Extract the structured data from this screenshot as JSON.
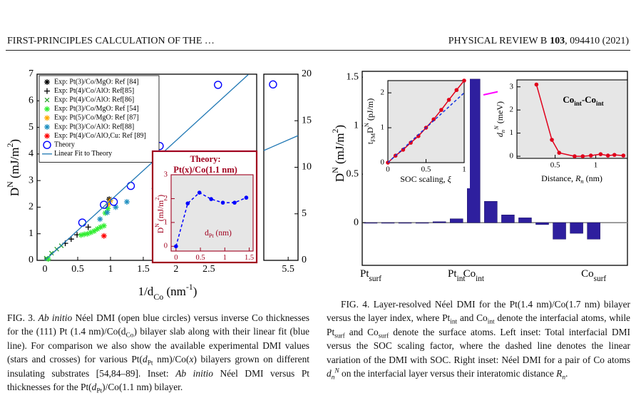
{
  "header": {
    "left": "FIRST-PRINCIPLES CALCULATION OF THE …",
    "journal": "PHYSICAL REVIEW B",
    "volume": "103",
    "citation": ", 094410 (2021)"
  },
  "chart_data": [
    {
      "type": "scatter",
      "ylabel": [
        {
          "t": "D"
        },
        {
          "t": "N",
          "s": "sup"
        },
        {
          "t": " (mJ/m"
        },
        {
          "t": "2",
          "s": "sup"
        },
        {
          "t": ")"
        }
      ],
      "xlabel": [
        {
          "t": "1/d"
        },
        {
          "t": "Co",
          "s": "sub"
        },
        {
          "t": " (nm"
        },
        {
          "t": "-1",
          "s": "sup"
        },
        {
          "t": ")"
        }
      ],
      "xlim": [
        -0.12,
        3.23
      ],
      "xticks": [
        0,
        0.5,
        1,
        1.5,
        2,
        2.5
      ],
      "x2lim": [
        5.13,
        5.65
      ],
      "x2ticks": [
        5.5
      ],
      "ylim": [
        0,
        7
      ],
      "yticks": [
        0,
        1,
        2,
        3,
        4,
        5,
        6,
        7
      ],
      "y2lim": [
        0,
        20
      ],
      "y2ticks": [
        0,
        5,
        10,
        15,
        20
      ],
      "legend": "upper left",
      "series": [
        {
          "name": "Exp: Pt(3)/Co/MgO: Ref [84]",
          "color": "#000000",
          "marker": "star",
          "x": [
            0.98
          ],
          "values": [
            2.3
          ]
        },
        {
          "name": "Exp: Pt(4)/Co/AlO: Ref[85]",
          "color": "#000000",
          "marker": "plus",
          "x": [
            0.31,
            0.4,
            0.49,
            0.66
          ],
          "values": [
            0.64,
            0.8,
            0.96,
            1.25
          ]
        },
        {
          "name": "Exp: Pt(4)/Co/AlO: Ref[86]",
          "color": "#2ca02c",
          "marker": "x",
          "x": [
            0.02,
            0.1,
            0.18,
            0.25
          ],
          "values": [
            0.08,
            0.27,
            0.42,
            0.55
          ]
        },
        {
          "name": "Exp: Pt(3)/Co/MgO: Ref [54]",
          "color": "#33ee33",
          "marker": "star",
          "x": [
            0.05,
            0.55,
            0.6,
            0.65,
            0.7,
            0.75,
            0.8,
            0.85,
            0.9,
            0.92,
            0.96
          ],
          "values": [
            0.05,
            0.95,
            0.98,
            1.0,
            1.05,
            1.1,
            1.18,
            1.25,
            1.3,
            1.78,
            1.95
          ]
        },
        {
          "name": "Exp: Pt(5)/Co/MgO: Ref [87]",
          "color": "#ffaa00",
          "marker": "star",
          "x": [
            0.97,
            1.0
          ],
          "values": [
            2.12,
            2.25
          ]
        },
        {
          "name": "Exp: Pt(3)/Co/AlO: Ref[88]",
          "color": "#2090c0",
          "marker": "star",
          "x": [
            0.84,
            0.95,
            1.08,
            1.25,
            1.67
          ],
          "values": [
            1.55,
            1.8,
            2.0,
            2.2,
            2.7
          ]
        },
        {
          "name": "Exp: Pt(4)/Co/AlO,Cu: Ref [89]",
          "color": "#ff0000",
          "marker": "star",
          "x": [
            0.9
          ],
          "values": [
            0.92
          ]
        },
        {
          "name": "Theory",
          "color": "#0000ff",
          "marker": "circle",
          "x": [
            0.57,
            0.9,
            1.05,
            1.31,
            1.75,
            2.64
          ],
          "values": [
            1.42,
            2.09,
            2.2,
            2.8,
            4.3,
            6.6
          ],
          "x2": [
            5.27
          ],
          "values2": [
            18.9
          ]
        },
        {
          "name": "Linear Fit to Theory",
          "color": "#1f77b4",
          "marker": "line",
          "x": [
            0,
            3.1
          ],
          "values": [
            0,
            6.98
          ],
          "x2": [
            5.13,
            5.65
          ],
          "values2": [
            11.8,
            13.4
          ]
        }
      ]
    },
    {
      "type": "line",
      "title": [
        "Theory:",
        "Pt(x)/Co(1.1 nm)"
      ],
      "ylabel": [
        {
          "t": "D"
        },
        {
          "t": "N",
          "s": "sup"
        },
        {
          "t": " (mJ/m"
        },
        {
          "t": "2",
          "s": "sup"
        },
        {
          "t": ")"
        }
      ],
      "xlabel": [
        {
          "t": "d"
        },
        {
          "t": "Pt",
          "s": "sub"
        },
        {
          "t": " (nm)"
        }
      ],
      "xlim": [
        -0.1,
        1.58
      ],
      "xticks": [
        0,
        0.5,
        1,
        1.5
      ],
      "ylim": [
        -0.2,
        3.0
      ],
      "yticks": [
        0,
        1,
        2,
        3
      ],
      "series": [
        {
          "color": "#0000ff",
          "marker": "dot",
          "dash": true,
          "x": [
            0,
            0.24,
            0.48,
            0.72,
            0.96,
            1.2,
            1.44
          ],
          "values": [
            0,
            1.8,
            2.25,
            1.98,
            1.83,
            1.83,
            2.04
          ]
        }
      ]
    },
    {
      "type": "bar",
      "ylabel": [
        {
          "t": "D"
        },
        {
          "t": "N",
          "s": "sup"
        },
        {
          "t": " (mJ/m"
        },
        {
          "t": "2",
          "s": "sup"
        },
        {
          "t": ")"
        }
      ],
      "categories": [
        {
          "t": "Pt",
          "sub": "surf"
        },
        null,
        null,
        null,
        null,
        {
          "t": "Pt",
          "sub": "int"
        },
        {
          "t": "Co",
          "sub": "int"
        },
        null,
        null,
        null,
        null,
        null,
        null,
        {
          "t": "Co",
          "sub": "surf"
        }
      ],
      "values": [
        0,
        0,
        0,
        0,
        0.01,
        0.04,
        1.48,
        0.22,
        0.08,
        0.05,
        -0.02,
        -0.17,
        -0.11,
        -0.17
      ],
      "color": "#2e1f9e",
      "ylim": [
        -0.44,
        1.56
      ],
      "yticks": [
        0,
        0.5,
        1,
        1.5
      ]
    },
    {
      "type": "line",
      "ylabel": [
        {
          "t": "t"
        },
        {
          "t": "FM",
          "s": "sub"
        },
        {
          "t": "D"
        },
        {
          "t": "N",
          "s": "sup"
        },
        {
          "t": " (pJ/m)"
        }
      ],
      "xlabel": [
        {
          "t": "SOC scaling, "
        },
        {
          "t": "ξ",
          "s": "i"
        }
      ],
      "xlim": [
        0,
        1
      ],
      "xticks": [
        0,
        0.5,
        1
      ],
      "ylim": [
        0,
        2.35
      ],
      "yticks": [
        0,
        1,
        2
      ],
      "series": [
        {
          "color": "#e0001b",
          "marker": "dot",
          "x": [
            0,
            0.1,
            0.2,
            0.3,
            0.4,
            0.5,
            0.6,
            0.7,
            0.8,
            0.9,
            1
          ],
          "values": [
            0,
            0.2,
            0.37,
            0.57,
            0.76,
            1.0,
            1.24,
            1.51,
            1.8,
            2.08,
            2.35
          ]
        },
        {
          "color": "#1030e0",
          "dash": true,
          "x": [
            0,
            1
          ],
          "values": [
            0,
            2.0
          ]
        }
      ]
    },
    {
      "type": "line",
      "title": [
        {
          "t": "Co",
          "s": "b"
        },
        {
          "t": "int",
          "s": "b sub"
        },
        {
          "t": "-Co",
          "s": "b"
        },
        {
          "t": "int",
          "s": "b sub"
        }
      ],
      "ylabel": [
        {
          "t": "d",
          "s": "i"
        },
        {
          "t": "n",
          "s": "i sub"
        },
        {
          "t": "N",
          "s": "i sup"
        },
        {
          "t": " (meV)"
        }
      ],
      "xlabel": [
        {
          "t": "Distance, "
        },
        {
          "t": "R",
          "s": "i"
        },
        {
          "t": "n",
          "s": "i sub"
        },
        {
          "t": " (nm)"
        }
      ],
      "xlim": [
        0.03,
        1.39
      ],
      "xticks": [
        0.5,
        1
      ],
      "ylim": [
        -0.09,
        3.3
      ],
      "yticks": [
        0,
        1,
        2,
        3
      ],
      "series": [
        {
          "color": "#e0001b",
          "marker": "dot",
          "x": [
            0.27,
            0.46,
            0.55,
            0.74,
            0.84,
            0.94,
            1.06,
            1.15,
            1.23,
            1.34
          ],
          "values": [
            3.1,
            0.71,
            0.15,
            0,
            0,
            0.03,
            0.09,
            0.03,
            0.06,
            0.03
          ]
        }
      ]
    }
  ],
  "captions": {
    "fig3": [
      {
        "t": "FIG. 3. "
      },
      {
        "t": "Ab initio",
        "s": "i"
      },
      {
        "t": " Néel DMI (open blue circles) versus inverse Co thicknesses for the (111) Pt (1.4 nm)/Co(d"
      },
      {
        "t": "Co",
        "s": "sub"
      },
      {
        "t": ") bilayer slab along with their linear fit (blue line). For comparison we also show the available experimental DMI values (stars and crosses) for various Pt("
      },
      {
        "t": "d",
        "s": "i"
      },
      {
        "t": "Pt",
        "s": "sub"
      },
      {
        "t": " nm)/Co("
      },
      {
        "t": "x",
        "s": "i"
      },
      {
        "t": ") bilayers grown on different insulating substrates [54,84–89]. Inset: "
      },
      {
        "t": "Ab initio",
        "s": "i"
      },
      {
        "t": " Néel DMI versus Pt thicknesses for the Pt("
      },
      {
        "t": "d",
        "s": "i"
      },
      {
        "t": "Pt",
        "s": "sub"
      },
      {
        "t": ")/Co(1.1 nm) bilayer."
      }
    ],
    "fig4": [
      {
        "t": "FIG. 4. Layer-resolved Néel DMI for the Pt(1.4 nm)/Co(1.7 nm) bilayer versus the layer index, where Pt"
      },
      {
        "t": "int",
        "s": "sub"
      },
      {
        "t": " and Co"
      },
      {
        "t": "int",
        "s": "sub"
      },
      {
        "t": " denote the interfacial atoms, while Pt"
      },
      {
        "t": "surf",
        "s": "sub"
      },
      {
        "t": " and Co"
      },
      {
        "t": "surf",
        "s": "sub"
      },
      {
        "t": " denote the surface atoms. Left inset: Total interfacial DMI versus the SOC scaling factor, where the dashed line denotes the linear variation of the DMI with SOC. Right inset: Néel DMI for a pair of Co atoms "
      },
      {
        "t": "d",
        "s": "i"
      },
      {
        "t": "n",
        "s": "i sub"
      },
      {
        "t": "N",
        "s": "i sup"
      },
      {
        "t": " on the interfacial layer versus their interatomic distance "
      },
      {
        "t": "R",
        "s": "i"
      },
      {
        "t": "n",
        "s": "i sub"
      },
      {
        "t": "."
      }
    ]
  }
}
